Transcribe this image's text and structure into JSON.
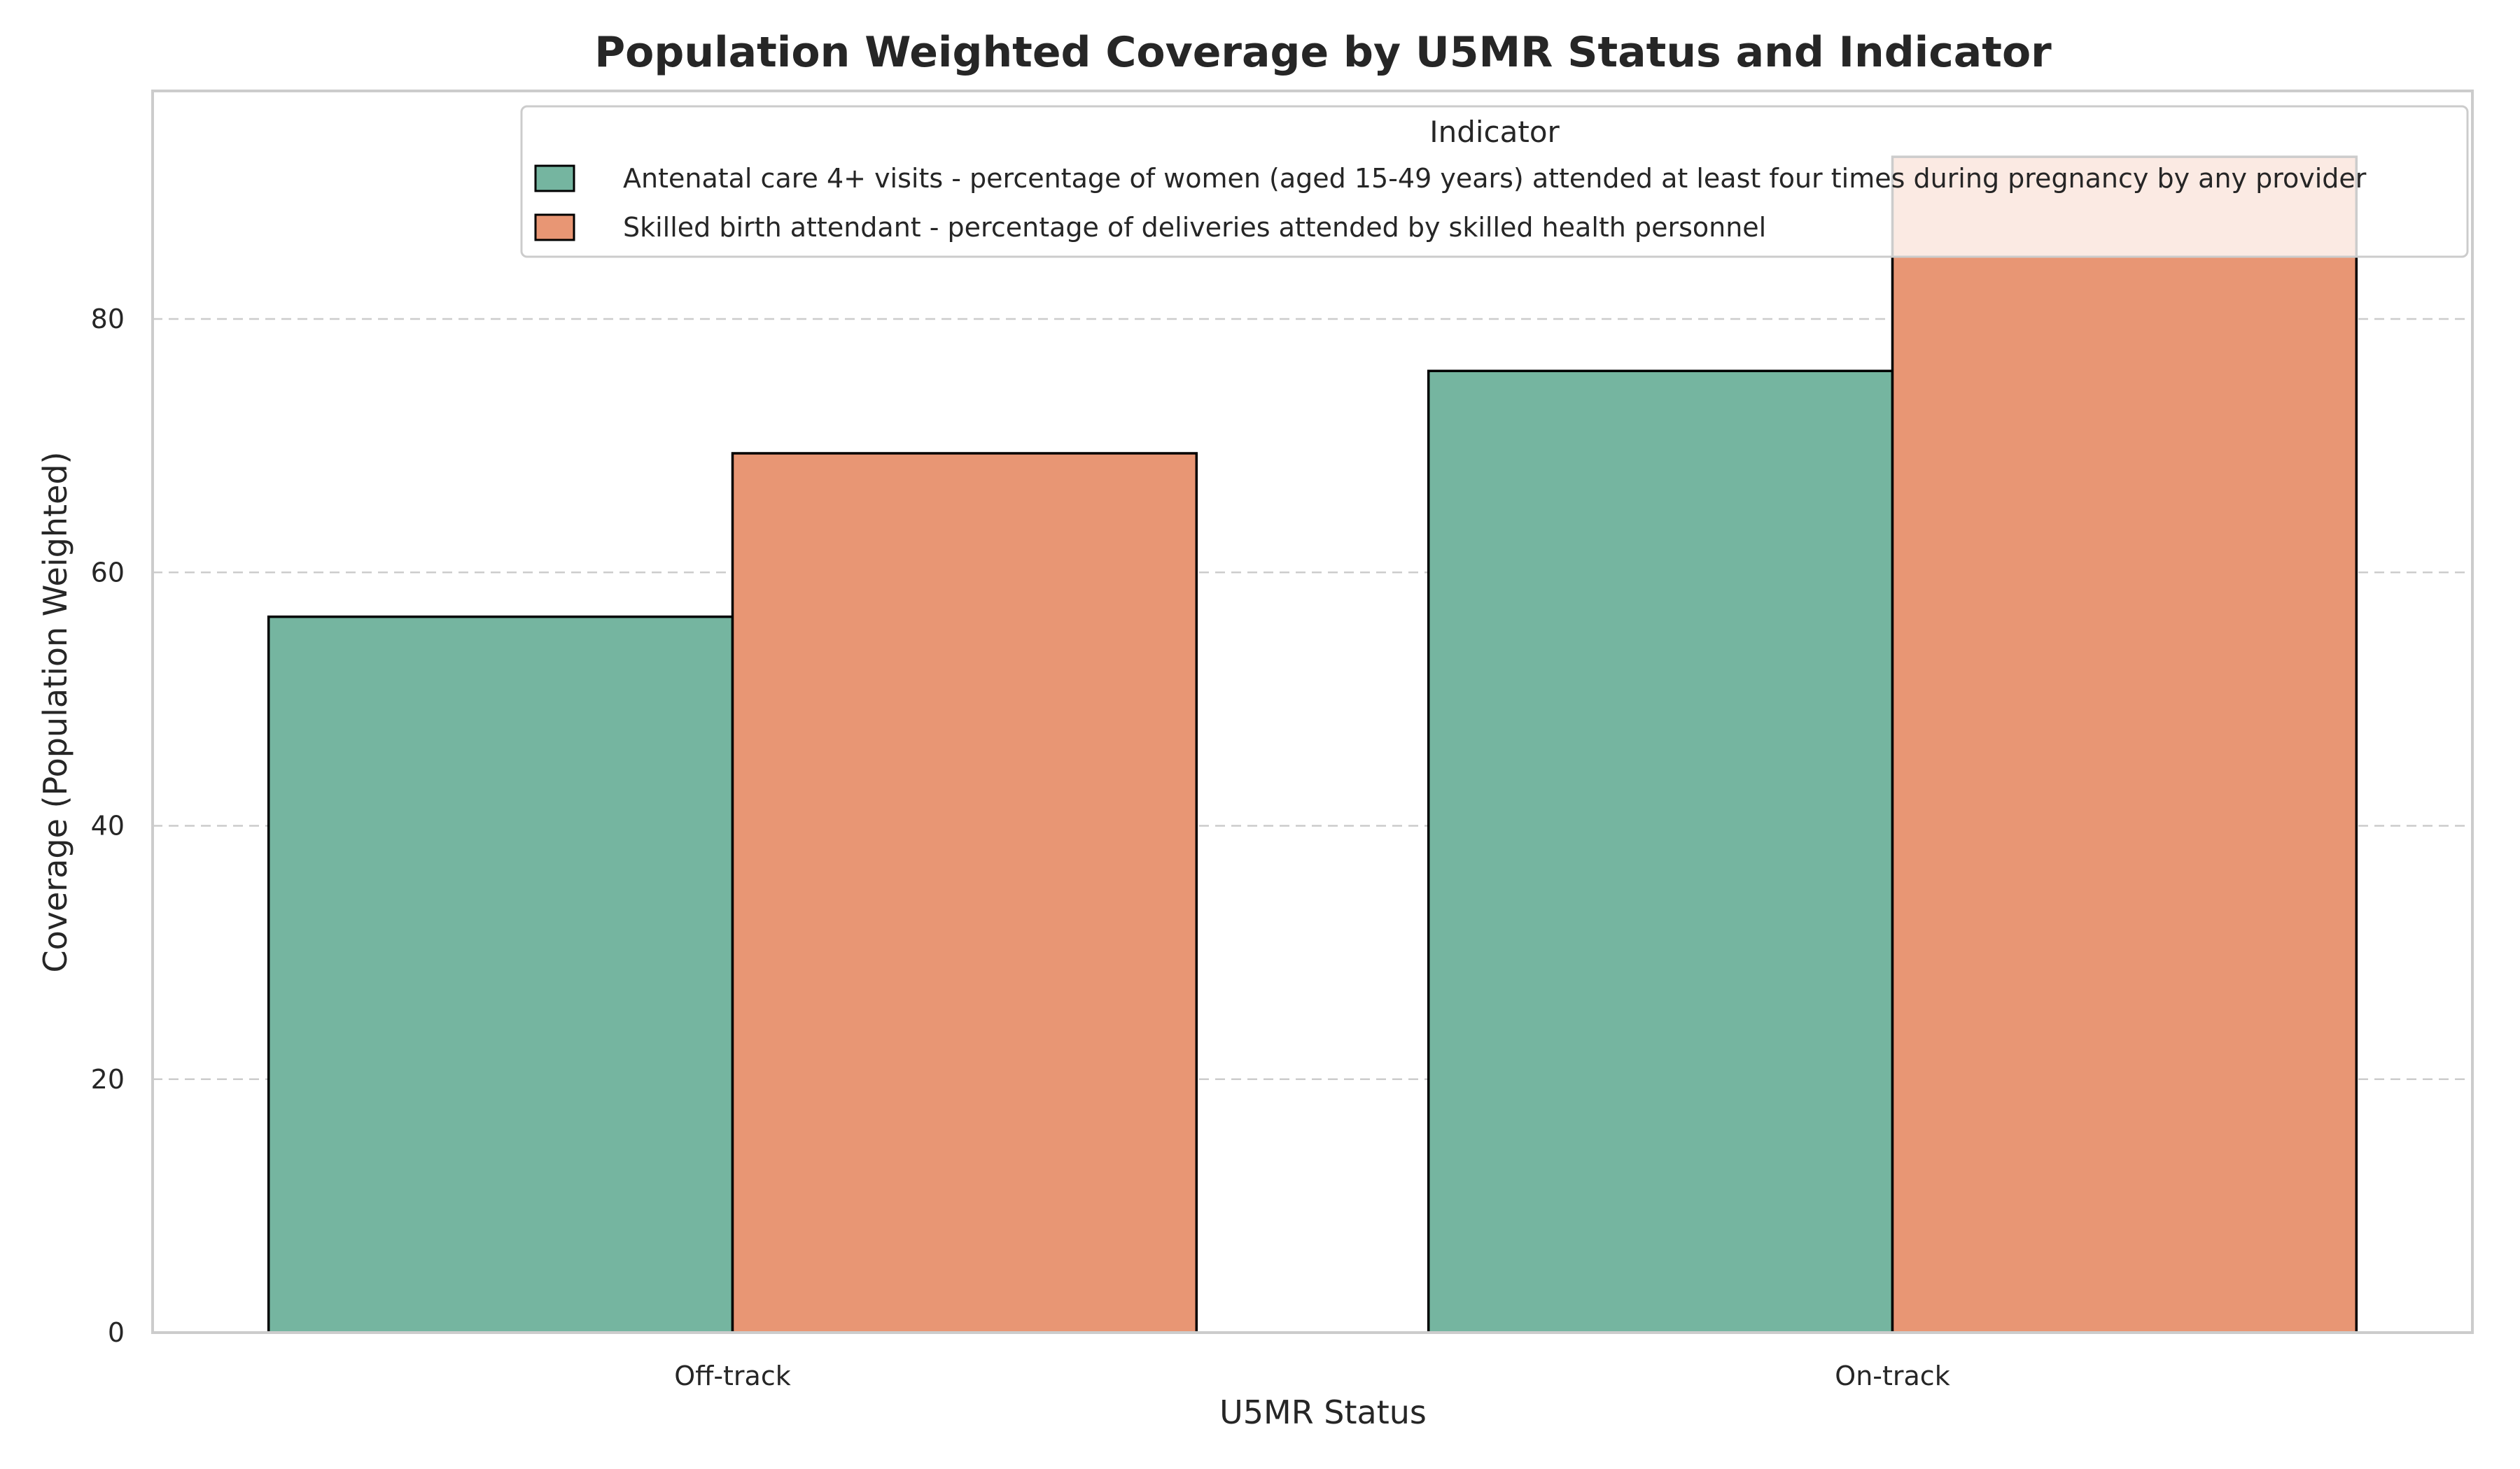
{
  "chart_data": {
    "type": "bar",
    "title": "Population Weighted Coverage by U5MR Status and Indicator",
    "xlabel": "U5MR Status",
    "ylabel": "Coverage (Population Weighted)",
    "categories": [
      "Off-track",
      "On-track"
    ],
    "ylim": [
      0,
      98
    ],
    "yticks": [
      0,
      20,
      40,
      60,
      80
    ],
    "grid": true,
    "legend": {
      "title": "Indicator",
      "placement": "top-right"
    },
    "series": [
      {
        "name": "Antenatal care 4+ visits - percentage of women (aged 15-49 years) attended at least four times during pregnancy by any provider",
        "color": "#75b5a0",
        "values": [
          56.5,
          75.9
        ]
      },
      {
        "name": "Skilled birth attendant - percentage of deliveries attended by skilled health personnel",
        "color": "#e89674",
        "values": [
          69.4,
          92.8
        ]
      }
    ]
  }
}
